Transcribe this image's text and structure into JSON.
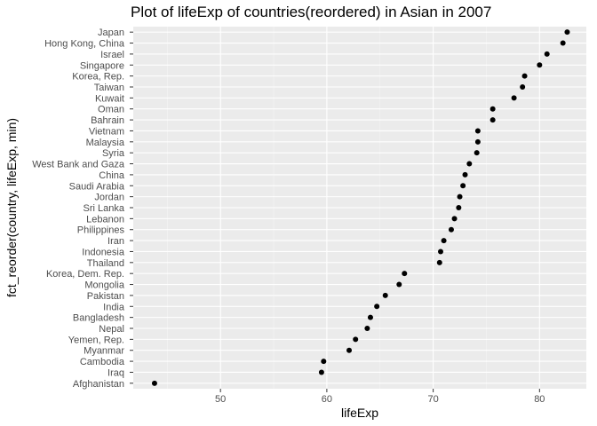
{
  "chart_data": {
    "type": "scatter",
    "title": "Plot of lifeExp of countries(reordered) in Asian in 2007",
    "xlabel": "lifeExp",
    "ylabel": "fct_reorder(country, lifeExp, min)",
    "xlim": [
      41.8,
      84.4
    ],
    "xticks": [
      50,
      60,
      70,
      80
    ],
    "grid": true,
    "background": "#ebebeb",
    "point_color": "#000000",
    "categories": [
      "Afghanistan",
      "Iraq",
      "Cambodia",
      "Myanmar",
      "Yemen, Rep.",
      "Nepal",
      "Bangladesh",
      "India",
      "Pakistan",
      "Mongolia",
      "Korea, Dem. Rep.",
      "Thailand",
      "Indonesia",
      "Iran",
      "Philippines",
      "Lebanon",
      "Sri Lanka",
      "Jordan",
      "Saudi Arabia",
      "China",
      "West Bank and Gaza",
      "Syria",
      "Malaysia",
      "Vietnam",
      "Bahrain",
      "Oman",
      "Kuwait",
      "Taiwan",
      "Korea, Rep.",
      "Singapore",
      "Israel",
      "Hong Kong, China",
      "Japan"
    ],
    "values": [
      43.8,
      59.5,
      59.7,
      62.1,
      62.7,
      63.8,
      64.1,
      64.7,
      65.5,
      66.8,
      67.3,
      70.6,
      70.7,
      71.0,
      71.7,
      72.0,
      72.4,
      72.5,
      72.8,
      73.0,
      73.4,
      74.1,
      74.2,
      74.2,
      75.6,
      75.6,
      77.6,
      78.4,
      78.6,
      80.0,
      80.7,
      82.2,
      82.6
    ]
  }
}
